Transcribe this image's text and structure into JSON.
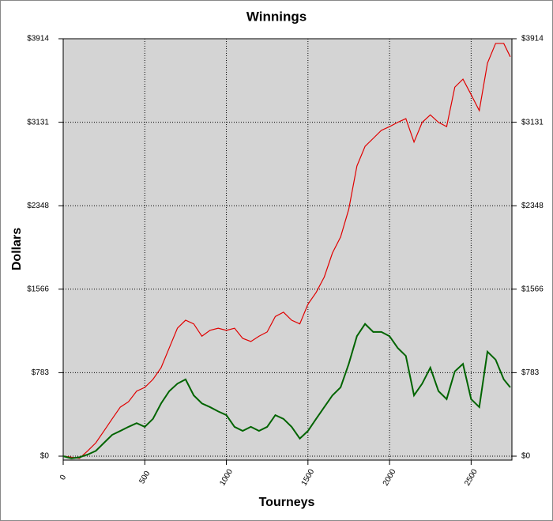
{
  "chart_data": {
    "type": "line",
    "title": "Winnings",
    "x_label": "Tourneys",
    "y_label": "Dollars",
    "x": [
      0,
      50,
      100,
      150,
      200,
      250,
      300,
      350,
      400,
      450,
      500,
      550,
      600,
      650,
      700,
      750,
      800,
      850,
      900,
      950,
      1000,
      1050,
      1100,
      1150,
      1200,
      1250,
      1300,
      1350,
      1400,
      1450,
      1500,
      1550,
      1600,
      1650,
      1700,
      1750,
      1800,
      1850,
      1900,
      1950,
      2000,
      2050,
      2100,
      2150,
      2200,
      2250,
      2300,
      2350,
      2400,
      2450,
      2500,
      2550,
      2600,
      2650,
      2700,
      2740
    ],
    "series": [
      {
        "color": "#e00000",
        "values": [
          0,
          -10,
          -20,
          50,
          125,
          237,
          350,
          460,
          510,
          610,
          645,
          720,
          830,
          1015,
          1200,
          1275,
          1240,
          1125,
          1180,
          1200,
          1180,
          1200,
          1105,
          1075,
          1125,
          1165,
          1310,
          1350,
          1275,
          1240,
          1425,
          1535,
          1680,
          1905,
          2055,
          2315,
          2720,
          2905,
          2980,
          3055,
          3090,
          3130,
          3165,
          2945,
          3130,
          3200,
          3130,
          3090,
          3460,
          3535,
          3390,
          3240,
          3685,
          3870,
          3870,
          3745
        ]
      },
      {
        "color": "#006400",
        "values": [
          0,
          -20,
          -10,
          15,
          50,
          125,
          200,
          237,
          275,
          310,
          275,
          350,
          495,
          610,
          680,
          720,
          570,
          495,
          460,
          420,
          385,
          275,
          237,
          275,
          237,
          275,
          385,
          350,
          275,
          165,
          237,
          350,
          460,
          570,
          645,
          865,
          1125,
          1240,
          1165,
          1165,
          1125,
          1015,
          940,
          570,
          680,
          830,
          610,
          535,
          795,
          865,
          535,
          460,
          980,
          905,
          720,
          645
        ]
      }
    ],
    "xlim": [
      0,
      2750
    ],
    "xticks": [
      0,
      500,
      1000,
      1500,
      2000,
      2500
    ],
    "ylim": [
      -37,
      3914
    ],
    "yticks": [
      {
        "value": 0,
        "label": "$0"
      },
      {
        "value": 783,
        "label": "$783"
      },
      {
        "value": 1566,
        "label": "$1566"
      },
      {
        "value": 2348,
        "label": "$2348"
      },
      {
        "value": 3131,
        "label": "$3131"
      },
      {
        "value": 3914,
        "label": "$3914"
      }
    ],
    "grid": true
  }
}
